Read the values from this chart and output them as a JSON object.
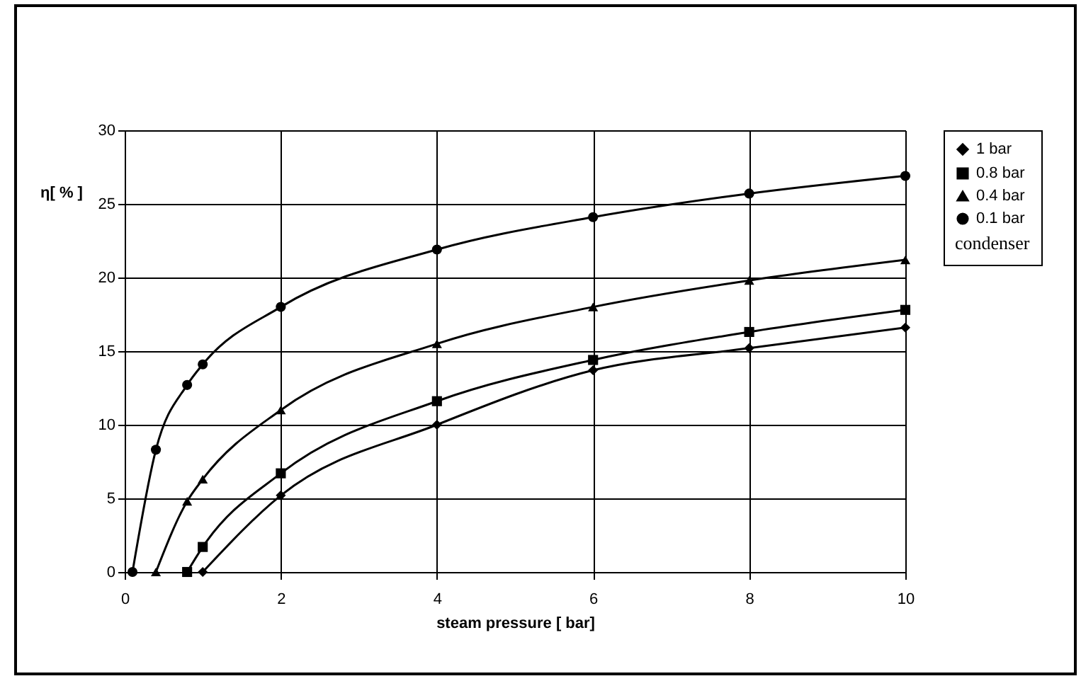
{
  "chart_data": {
    "type": "line",
    "xlabel": "steam  pressure [ bar]",
    "ylabel": "η[ % ]",
    "legend_title": "condenser",
    "xlim": [
      0,
      10
    ],
    "xticks": [
      0,
      2,
      4,
      6,
      8,
      10
    ],
    "ylim": [
      0,
      30
    ],
    "yticks": [
      0,
      5,
      10,
      15,
      20,
      25,
      30
    ],
    "grid": true,
    "legend": "right",
    "series": [
      {
        "name": "1 bar",
        "color": "#000000",
        "marker": "diamond",
        "x": [
          1.0,
          2,
          4,
          6,
          8,
          10
        ],
        "values": [
          0,
          5.2,
          10,
          13.7,
          15.2,
          16.6
        ]
      },
      {
        "name": "0.8 bar",
        "color": "#000000",
        "marker": "square",
        "x": [
          0.8,
          1.0,
          2,
          4,
          6,
          8,
          10
        ],
        "values": [
          0,
          1.7,
          6.7,
          11.6,
          14.4,
          16.3,
          17.8
        ]
      },
      {
        "name": "0.4 bar",
        "color": "#000000",
        "marker": "triangle",
        "x": [
          0.4,
          0.8,
          1.0,
          2,
          4,
          6,
          8,
          10
        ],
        "values": [
          0,
          4.8,
          6.3,
          11,
          15.5,
          18,
          19.8,
          21.2
        ]
      },
      {
        "name": "0.1 bar",
        "color": "#000000",
        "marker": "circle",
        "x": [
          0.1,
          0.4,
          0.8,
          1.0,
          2,
          4,
          6,
          8,
          10
        ],
        "values": [
          0,
          8.3,
          12.7,
          14.1,
          18,
          21.9,
          24.1,
          25.7,
          26.9
        ]
      }
    ]
  }
}
